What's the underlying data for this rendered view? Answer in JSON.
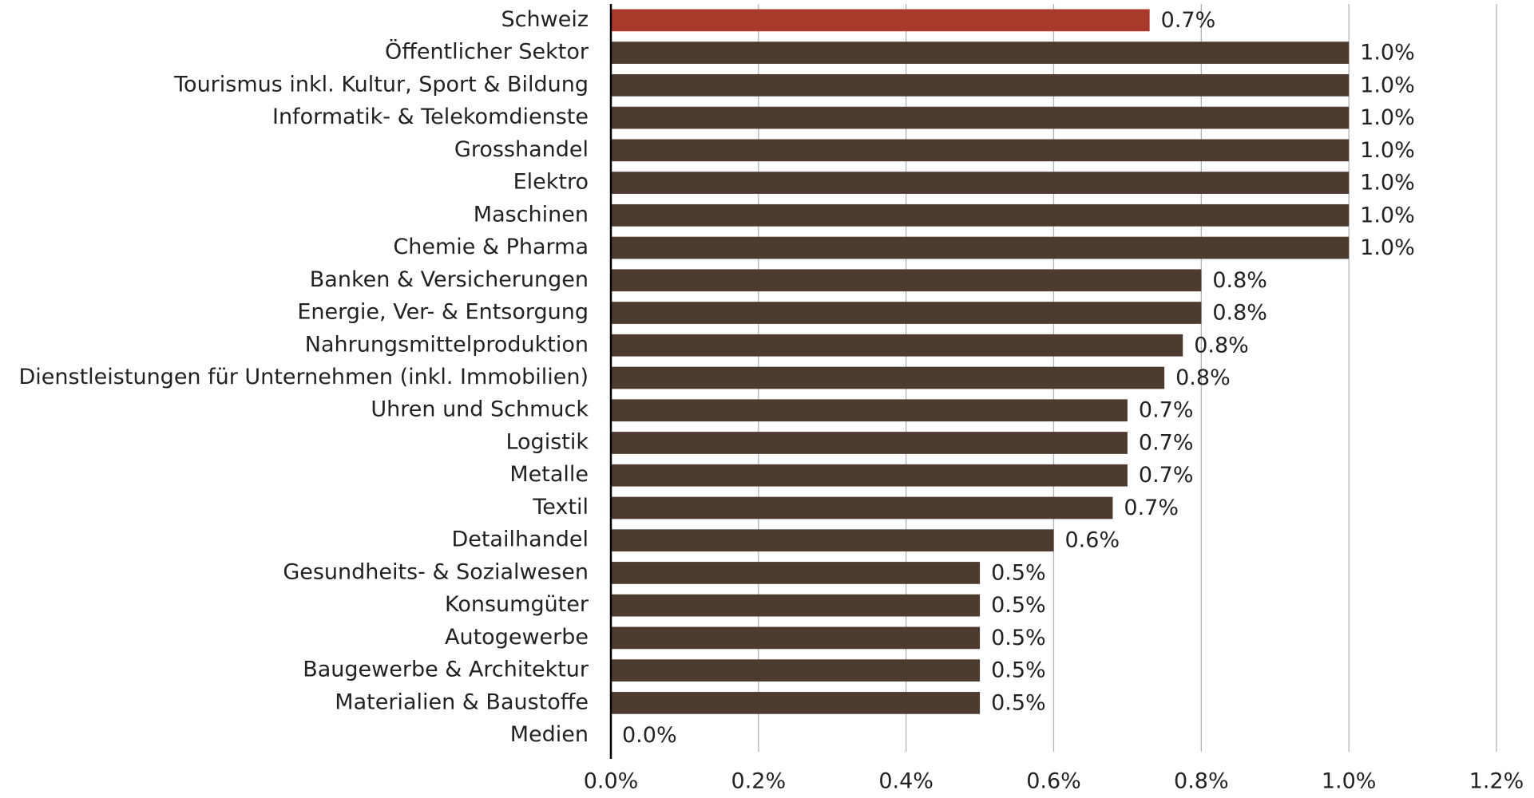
{
  "chart_data": {
    "type": "hbar",
    "categories": [
      "Schweiz",
      "Öffentlicher Sektor",
      "Tourismus inkl. Kultur, Sport & Bildung",
      "Informatik- & Telekomdienste",
      "Grosshandel",
      "Elektro",
      "Maschinen",
      "Chemie & Pharma",
      "Banken & Versicherungen",
      "Energie, Ver- & Entsorgung",
      "Nahrungsmittelproduktion",
      "Dienstleistungen für Unternehmen (inkl. Immobilien)",
      "Uhren und Schmuck",
      "Logistik",
      "Metalle",
      "Textil",
      "Detailhandel",
      "Gesundheits- & Sozialwesen",
      "Konsumgüter",
      "Autogewerbe",
      "Baugewerbe & Architektur",
      "Materialien & Baustoffe",
      "Medien"
    ],
    "values": [
      0.73,
      1.0,
      1.0,
      1.0,
      1.0,
      1.0,
      1.0,
      1.0,
      0.8,
      0.8,
      0.775,
      0.75,
      0.7,
      0.7,
      0.7,
      0.68,
      0.6,
      0.5,
      0.5,
      0.5,
      0.5,
      0.5,
      0.0
    ],
    "value_labels": [
      "0.7%",
      "1.0%",
      "1.0%",
      "1.0%",
      "1.0%",
      "1.0%",
      "1.0%",
      "1.0%",
      "0.8%",
      "0.8%",
      "0.8%",
      "0.8%",
      "0.7%",
      "0.7%",
      "0.7%",
      "0.7%",
      "0.6%",
      "0.5%",
      "0.5%",
      "0.5%",
      "0.5%",
      "0.5%",
      "0.0%"
    ],
    "colors": [
      "#a8392b",
      "#4e3b30",
      "#4e3b30",
      "#4e3b30",
      "#4e3b30",
      "#4e3b30",
      "#4e3b30",
      "#4e3b30",
      "#4e3b30",
      "#4e3b30",
      "#4e3b30",
      "#4e3b30",
      "#4e3b30",
      "#4e3b30",
      "#4e3b30",
      "#4e3b30",
      "#4e3b30",
      "#4e3b30",
      "#4e3b30",
      "#4e3b30",
      "#4e3b30",
      "#4e3b30",
      "#4e3b30"
    ],
    "xlim": [
      0,
      1.2
    ],
    "xticks": [
      {
        "value": 0,
        "label": "0.0%"
      },
      {
        "value": 0.2,
        "label": "0.2%"
      },
      {
        "value": 0.4,
        "label": "0.4%"
      },
      {
        "value": 0.6,
        "label": "0.6%"
      },
      {
        "value": 0.8,
        "label": "0.8%"
      },
      {
        "value": 1.0,
        "label": "1.0%"
      },
      {
        "value": 1.2,
        "label": "1.2%"
      }
    ],
    "grid": true
  }
}
